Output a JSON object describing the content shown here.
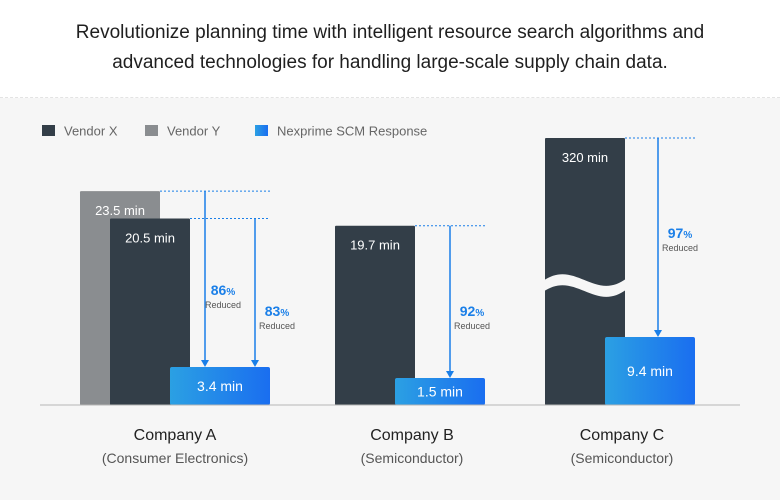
{
  "header": {
    "line1": "Revolutionize planning time with intelligent resource search algorithms and",
    "line2": "advanced technologies for handling large-scale supply chain data."
  },
  "colors": {
    "vendor_x": "#333e48",
    "vendor_y": "#8a8d90",
    "nexprime_start": "#2ba0e3",
    "nexprime_end": "#1a6ef0",
    "accent": "#1a7fe8"
  },
  "chart_data": {
    "type": "bar",
    "unit": "min",
    "legend": [
      {
        "name": "Vendor X",
        "color": "#333e48"
      },
      {
        "name": "Vendor Y",
        "color": "#8a8d90"
      },
      {
        "name": "Nexprime SCM Response",
        "color": "#1a7fe8"
      }
    ],
    "legend_position": "top-left",
    "grid": false,
    "axis_break": {
      "category": "Company C",
      "series": "Vendor X"
    },
    "categories": [
      {
        "name": "Company A",
        "subtitle": "(Consumer Electronics)",
        "bars": [
          {
            "series": "Vendor Y",
            "value": 23.5,
            "label": "23.5 min"
          },
          {
            "series": "Vendor X",
            "value": 20.5,
            "label": "20.5 min"
          },
          {
            "series": "Nexprime SCM Response",
            "value": 3.4,
            "label": "3.4 min"
          }
        ],
        "reductions": [
          {
            "from": "Vendor Y",
            "percent": "86",
            "unit": "%",
            "text": "Reduced"
          },
          {
            "from": "Vendor X",
            "percent": "83",
            "unit": "%",
            "text": "Reduced"
          }
        ]
      },
      {
        "name": "Company B",
        "subtitle": "(Semiconductor)",
        "bars": [
          {
            "series": "Vendor X",
            "value": 19.7,
            "label": "19.7 min"
          },
          {
            "series": "Nexprime SCM Response",
            "value": 1.5,
            "label": "1.5 min"
          }
        ],
        "reductions": [
          {
            "from": "Vendor X",
            "percent": "92",
            "unit": "%",
            "text": "Reduced"
          }
        ]
      },
      {
        "name": "Company C",
        "subtitle": "(Semiconductor)",
        "bars": [
          {
            "series": "Vendor X",
            "value": 320,
            "label": "320 min"
          },
          {
            "series": "Nexprime SCM Response",
            "value": 9.4,
            "label": "9.4 min"
          }
        ],
        "reductions": [
          {
            "from": "Vendor X",
            "percent": "97",
            "unit": "%",
            "text": "Reduced"
          }
        ]
      }
    ]
  }
}
